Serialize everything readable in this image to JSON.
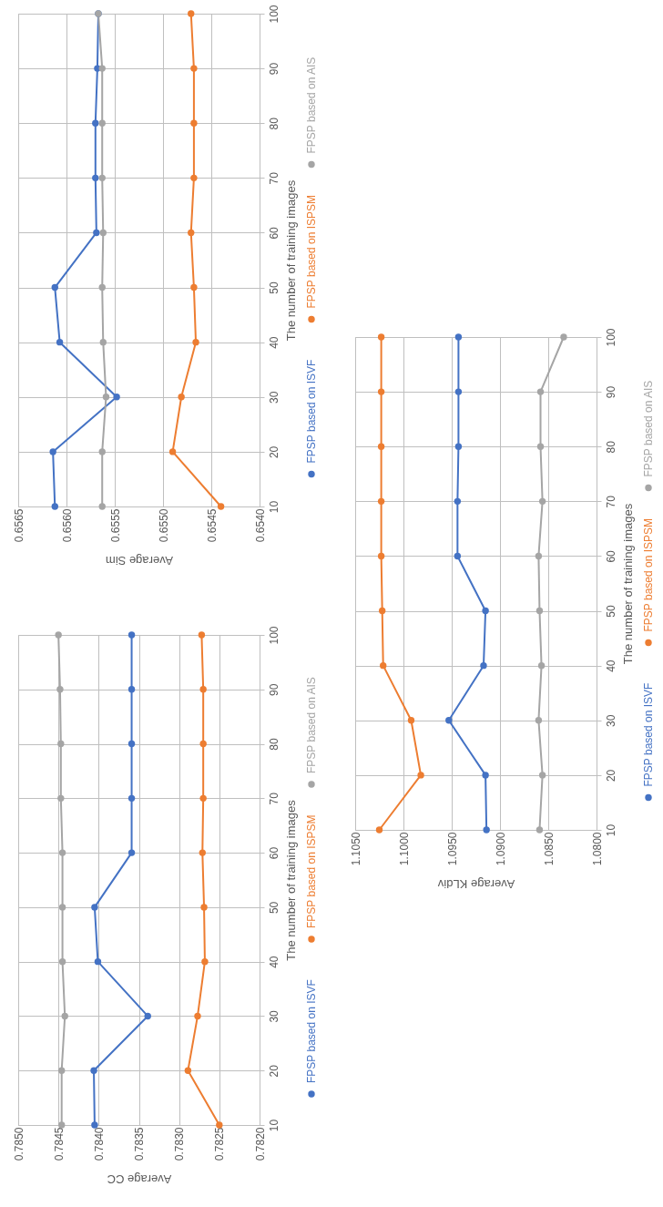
{
  "chart_data": [
    {
      "type": "line",
      "xlabel": "Average Sim",
      "ylabel": "The number of training images",
      "ylim": [
        10,
        100
      ],
      "yticks": [
        10,
        20,
        30,
        40,
        50,
        60,
        70,
        80,
        90,
        100
      ],
      "xlim": [
        0.6565,
        0.654
      ],
      "xticks": [
        {
          "value": 0.654,
          "label": "0.6540"
        },
        {
          "value": 0.6545,
          "label": "0.6545"
        },
        {
          "value": 0.655,
          "label": "0.6550"
        },
        {
          "value": 0.6555,
          "label": "0.6555"
        },
        {
          "value": 0.656,
          "label": "0.6560"
        },
        {
          "value": 0.6565,
          "label": "0.6565"
        }
      ],
      "grid": true,
      "legend": "right",
      "marker": "circle",
      "series": [
        {
          "name": "FPSP based on ISVF",
          "color": "#4472c4",
          "values": [
            10,
            20,
            30,
            40,
            50,
            60,
            70,
            80,
            90,
            100
          ],
          "x": [
            0.65612,
            0.65614,
            0.65548,
            0.65607,
            0.65612,
            0.65569,
            0.6557,
            0.6557,
            0.65568,
            0.65567
          ]
        },
        {
          "name": "FPSP based on ISPSM",
          "color": "#ed7d31",
          "values": [
            10,
            20,
            30,
            40,
            50,
            60,
            70,
            80,
            90,
            100
          ],
          "x": [
            0.6544,
            0.6549,
            0.65481,
            0.65466,
            0.65468,
            0.65471,
            0.65468,
            0.65468,
            0.65468,
            0.65471
          ]
        },
        {
          "name": "FPSP based on AIS",
          "color": "#a5a5a5",
          "values": [
            10,
            20,
            30,
            40,
            50,
            60,
            70,
            80,
            90,
            100
          ],
          "x": [
            0.65563,
            0.65563,
            0.65559,
            0.65562,
            0.65563,
            0.65562,
            0.65563,
            0.65563,
            0.65563,
            0.65567
          ]
        }
      ]
    },
    {
      "type": "line",
      "xlabel": "Average CC",
      "ylabel": "The number of training images",
      "ylim": [
        10,
        100
      ],
      "yticks": [
        10,
        20,
        30,
        40,
        50,
        60,
        70,
        80,
        90,
        100
      ],
      "xlim": [
        0.785,
        0.782
      ],
      "xticks": [
        {
          "value": 0.782,
          "label": "0.7820"
        },
        {
          "value": 0.7825,
          "label": "0.7825"
        },
        {
          "value": 0.783,
          "label": "0.7830"
        },
        {
          "value": 0.7835,
          "label": "0.7835"
        },
        {
          "value": 0.784,
          "label": "0.7840"
        },
        {
          "value": 0.7845,
          "label": "0.7845"
        },
        {
          "value": 0.785,
          "label": "0.7850"
        }
      ],
      "grid": true,
      "legend": "right",
      "marker": "circle",
      "series": [
        {
          "name": "FPSP based on ISVF",
          "color": "#4472c4",
          "values": [
            10,
            20,
            30,
            40,
            50,
            60,
            70,
            80,
            90,
            100
          ],
          "x": [
            0.78405,
            0.78406,
            0.78339,
            0.78401,
            0.78405,
            0.78359,
            0.78359,
            0.78359,
            0.78359,
            0.78359
          ]
        },
        {
          "name": "FPSP based on ISPSM",
          "color": "#ed7d31",
          "values": [
            10,
            20,
            30,
            40,
            50,
            60,
            70,
            80,
            90,
            100
          ],
          "x": [
            0.7825,
            0.78289,
            0.78277,
            0.78268,
            0.78269,
            0.78271,
            0.7827,
            0.7827,
            0.7827,
            0.78272
          ]
        },
        {
          "name": "FPSP based on AIS",
          "color": "#a5a5a5",
          "values": [
            10,
            20,
            30,
            40,
            50,
            60,
            70,
            80,
            90,
            100
          ],
          "x": [
            0.78446,
            0.78446,
            0.78442,
            0.78445,
            0.78445,
            0.78445,
            0.78447,
            0.78447,
            0.78448,
            0.7845
          ]
        }
      ]
    },
    {
      "type": "line",
      "xlabel": "Average KLdiv",
      "ylabel": "The number of training images",
      "ylim": [
        10,
        100
      ],
      "yticks": [
        10,
        20,
        30,
        40,
        50,
        60,
        70,
        80,
        90,
        100
      ],
      "xlim": [
        1.105,
        1.08
      ],
      "xticks": [
        {
          "value": 1.08,
          "label": "1.0800"
        },
        {
          "value": 1.085,
          "label": "1.0850"
        },
        {
          "value": 1.09,
          "label": "1.0900"
        },
        {
          "value": 1.095,
          "label": "1.0950"
        },
        {
          "value": 1.1,
          "label": "1.1000"
        },
        {
          "value": 1.105,
          "label": "1.1050"
        }
      ],
      "grid": true,
      "legend": "right",
      "marker": "circle",
      "series": [
        {
          "name": "FPSP based on ISVF",
          "color": "#4472c4",
          "values": [
            10,
            20,
            30,
            40,
            50,
            60,
            70,
            80,
            90,
            100
          ],
          "x": [
            1.0914,
            1.0915,
            1.0953,
            1.0917,
            1.0915,
            1.0944,
            1.0944,
            1.0943,
            1.0943,
            1.0943
          ]
        },
        {
          "name": "FPSP based on ISPSM",
          "color": "#ed7d31",
          "values": [
            10,
            20,
            30,
            40,
            50,
            60,
            70,
            80,
            90,
            100
          ],
          "x": [
            1.1025,
            1.0982,
            1.0992,
            1.1021,
            1.1022,
            1.1023,
            1.1023,
            1.1023,
            1.1023,
            1.1023
          ]
        },
        {
          "name": "FPSP based on AIS",
          "color": "#a5a5a5",
          "values": [
            10,
            20,
            30,
            40,
            50,
            60,
            70,
            80,
            90,
            100
          ],
          "x": [
            1.0859,
            1.0856,
            1.086,
            1.0857,
            1.0859,
            1.086,
            1.0856,
            1.0858,
            1.0858,
            1.0834
          ]
        }
      ]
    }
  ]
}
